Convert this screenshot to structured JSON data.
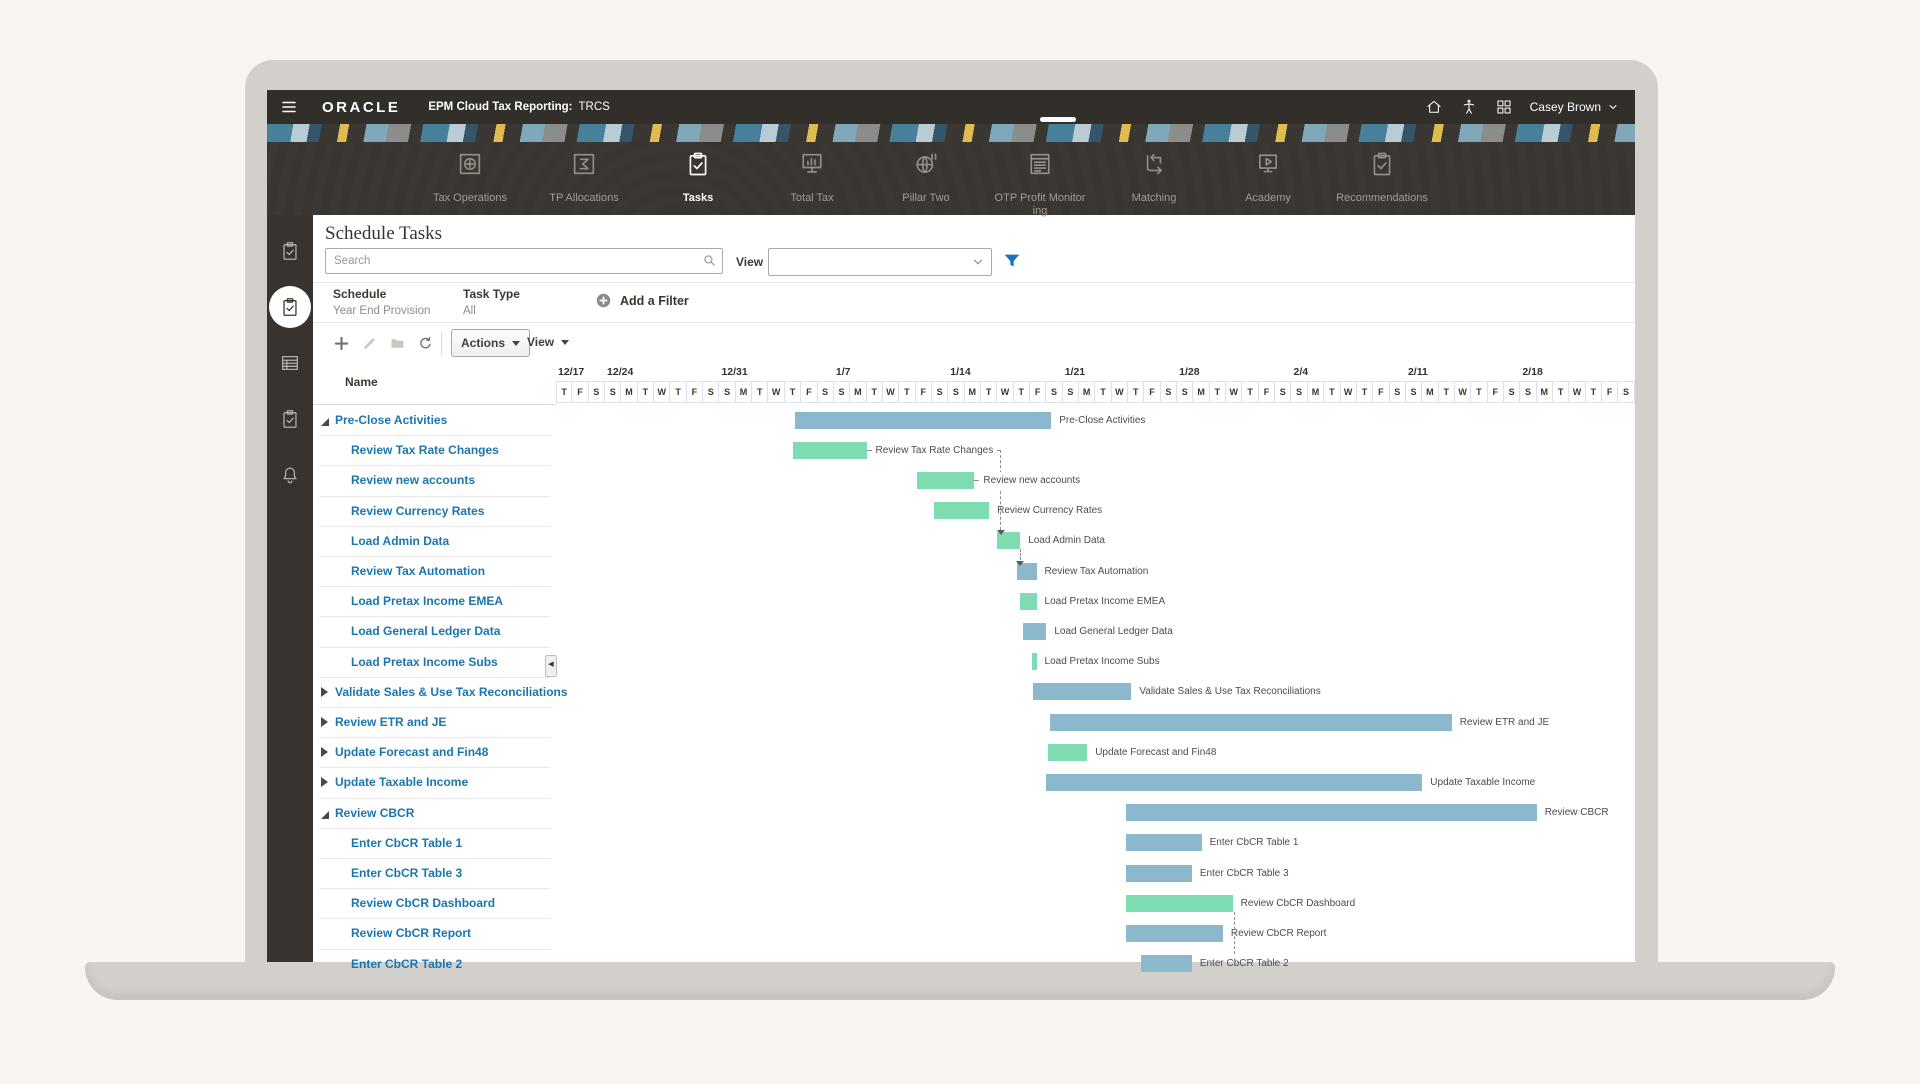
{
  "topbar": {
    "brand": "ORACLE",
    "app_title": "EPM Cloud Tax Reporting:",
    "app_code": "TRCS",
    "user": "Casey Brown",
    "icons": [
      "home",
      "accessibility",
      "app-grid"
    ]
  },
  "nav": {
    "active": "Tasks",
    "items": [
      {
        "label": "Tax Operations",
        "icon": "tax-operations"
      },
      {
        "label": "TP Allocations",
        "icon": "tp-allocations"
      },
      {
        "label": "Tasks",
        "icon": "clipboard-check"
      },
      {
        "label": "Total Tax",
        "icon": "total-tax"
      },
      {
        "label": "Pillar Two",
        "icon": "pillar-two"
      },
      {
        "label": "OTP Profit Monitoring",
        "icon": "otp-profit-monitoring"
      },
      {
        "label": "Matching",
        "icon": "matching"
      },
      {
        "label": "Academy",
        "icon": "academy"
      },
      {
        "label": "Recommendations",
        "icon": "clipboard-check"
      }
    ]
  },
  "sidebar": {
    "icons": [
      "clipboard-check",
      "clipboard-check",
      "table",
      "clipboard-check",
      "bell"
    ],
    "active_index": 1
  },
  "page": {
    "title": "Schedule Tasks"
  },
  "filter_bar": {
    "search_placeholder": "Search",
    "view_label": "View"
  },
  "filters": {
    "schedule_label": "Schedule",
    "schedule_value": "Year End Provision",
    "task_type_label": "Task Type",
    "task_type_value": "All",
    "add_filter_label": "Add a Filter"
  },
  "toolbar": {
    "actions_label": "Actions",
    "view_label": "View",
    "icons": [
      "add",
      "edit",
      "folder",
      "refresh"
    ]
  },
  "tasklist": {
    "header": "Name",
    "rows": [
      {
        "label": "Pre-Close Activities",
        "level": 0,
        "state": "expanded"
      },
      {
        "label": "Review Tax Rate Changes",
        "level": 1
      },
      {
        "label": "Review new accounts",
        "level": 1
      },
      {
        "label": "Review Currency Rates",
        "level": 1
      },
      {
        "label": "Load Admin Data",
        "level": 1
      },
      {
        "label": "Review Tax Automation",
        "level": 1
      },
      {
        "label": "Load Pretax Income EMEA",
        "level": 1
      },
      {
        "label": "Load General Ledger Data",
        "level": 1
      },
      {
        "label": "Load Pretax Income Subs",
        "level": 1
      },
      {
        "label": "Validate Sales & Use Tax Reconciliations",
        "level": 0,
        "state": "collapsed"
      },
      {
        "label": "Review ETR and JE",
        "level": 0,
        "state": "collapsed"
      },
      {
        "label": "Update Forecast and Fin48",
        "level": 0,
        "state": "collapsed"
      },
      {
        "label": "Update Taxable Income",
        "level": 0,
        "state": "collapsed"
      },
      {
        "label": "Review CBCR",
        "level": 0,
        "state": "expanded"
      },
      {
        "label": "Enter CbCR Table 1",
        "level": 1
      },
      {
        "label": "Enter CbCR Table 3",
        "level": 1
      },
      {
        "label": "Review CbCR Dashboard",
        "level": 1
      },
      {
        "label": "Review CbCR Report",
        "level": 1
      },
      {
        "label": "Enter CbCR Table 2",
        "level": 1
      }
    ]
  },
  "gantt": {
    "week_labels": [
      {
        "label": "12/17",
        "day": 0
      },
      {
        "label": "12/24",
        "day": 3
      },
      {
        "label": "12/31",
        "day": 10
      },
      {
        "label": "1/7",
        "day": 17
      },
      {
        "label": "1/14",
        "day": 24
      },
      {
        "label": "1/21",
        "day": 31
      },
      {
        "label": "1/28",
        "day": 38
      },
      {
        "label": "2/4",
        "day": 45
      },
      {
        "label": "2/11",
        "day": 52
      },
      {
        "label": "2/18",
        "day": 59
      }
    ],
    "lead_days": [
      "T",
      "F",
      "S"
    ],
    "week_days": [
      "S",
      "M",
      "T",
      "W",
      "T",
      "F",
      "S"
    ],
    "num_weeks": 9,
    "colors": {
      "blue": "#8cb8ce",
      "green": "#7fdcb2"
    },
    "bars": [
      {
        "row": 0,
        "start": 14.6,
        "len": 15.7,
        "color": "blue",
        "label": "Pre-Close Activities"
      },
      {
        "row": 1,
        "start": 14.5,
        "len": 4.5,
        "color": "green",
        "label": "Review Tax Rate Changes",
        "label_on_line": true
      },
      {
        "row": 2,
        "start": 22.1,
        "len": 3.5,
        "color": "green",
        "label": "Review new accounts",
        "label_on_line": true,
        "dash_before_label": true
      },
      {
        "row": 3,
        "start": 23.1,
        "len": 3.4,
        "color": "green",
        "label": "Review Currency Rates"
      },
      {
        "row": 4,
        "start": 27.0,
        "len": 1.4,
        "color": "green",
        "label": "Load Admin Data"
      },
      {
        "row": 5,
        "start": 28.2,
        "len": 1.2,
        "color": "blue",
        "label": "Review Tax Automation"
      },
      {
        "row": 6,
        "start": 28.4,
        "len": 1.0,
        "color": "green",
        "label": "Load Pretax Income EMEA"
      },
      {
        "row": 7,
        "start": 28.6,
        "len": 1.4,
        "color": "blue",
        "label": "Load General Ledger Data"
      },
      {
        "row": 8,
        "start": 29.1,
        "len": 0.3,
        "color": "green",
        "label": "Load Pretax Income Subs"
      },
      {
        "row": 9,
        "start": 29.2,
        "len": 6.0,
        "color": "blue",
        "label": "Validate Sales & Use Tax Reconciliations"
      },
      {
        "row": 10,
        "start": 30.2,
        "len": 24.6,
        "color": "blue",
        "label": "Review ETR and JE"
      },
      {
        "row": 11,
        "start": 30.1,
        "len": 2.4,
        "color": "green",
        "label": "Update Forecast and Fin48"
      },
      {
        "row": 12,
        "start": 30.0,
        "len": 23.0,
        "color": "blue",
        "label": "Update Taxable Income"
      },
      {
        "row": 13,
        "start": 34.9,
        "len": 25.1,
        "color": "blue",
        "label": "Review CBCR"
      },
      {
        "row": 14,
        "start": 34.9,
        "len": 4.6,
        "color": "blue",
        "label": "Enter CbCR Table 1"
      },
      {
        "row": 15,
        "start": 34.9,
        "len": 4.0,
        "color": "blue",
        "label": "Enter CbCR Table 3"
      },
      {
        "row": 16,
        "start": 34.9,
        "len": 6.5,
        "color": "green",
        "label": "Review CbCR Dashboard"
      },
      {
        "row": 17,
        "start": 34.9,
        "len": 5.9,
        "color": "blue",
        "label": "Review CbCR Report"
      },
      {
        "row": 18,
        "start": 35.8,
        "len": 3.1,
        "color": "blue",
        "label": "Enter CbCR Table 2"
      }
    ],
    "connectors": [
      {
        "from": 1,
        "to": 4,
        "style": "line-through-label"
      },
      {
        "from": 4,
        "to": 5,
        "style": "drop"
      },
      {
        "from": 16,
        "to": 18,
        "style": "drop-from-end"
      }
    ]
  }
}
